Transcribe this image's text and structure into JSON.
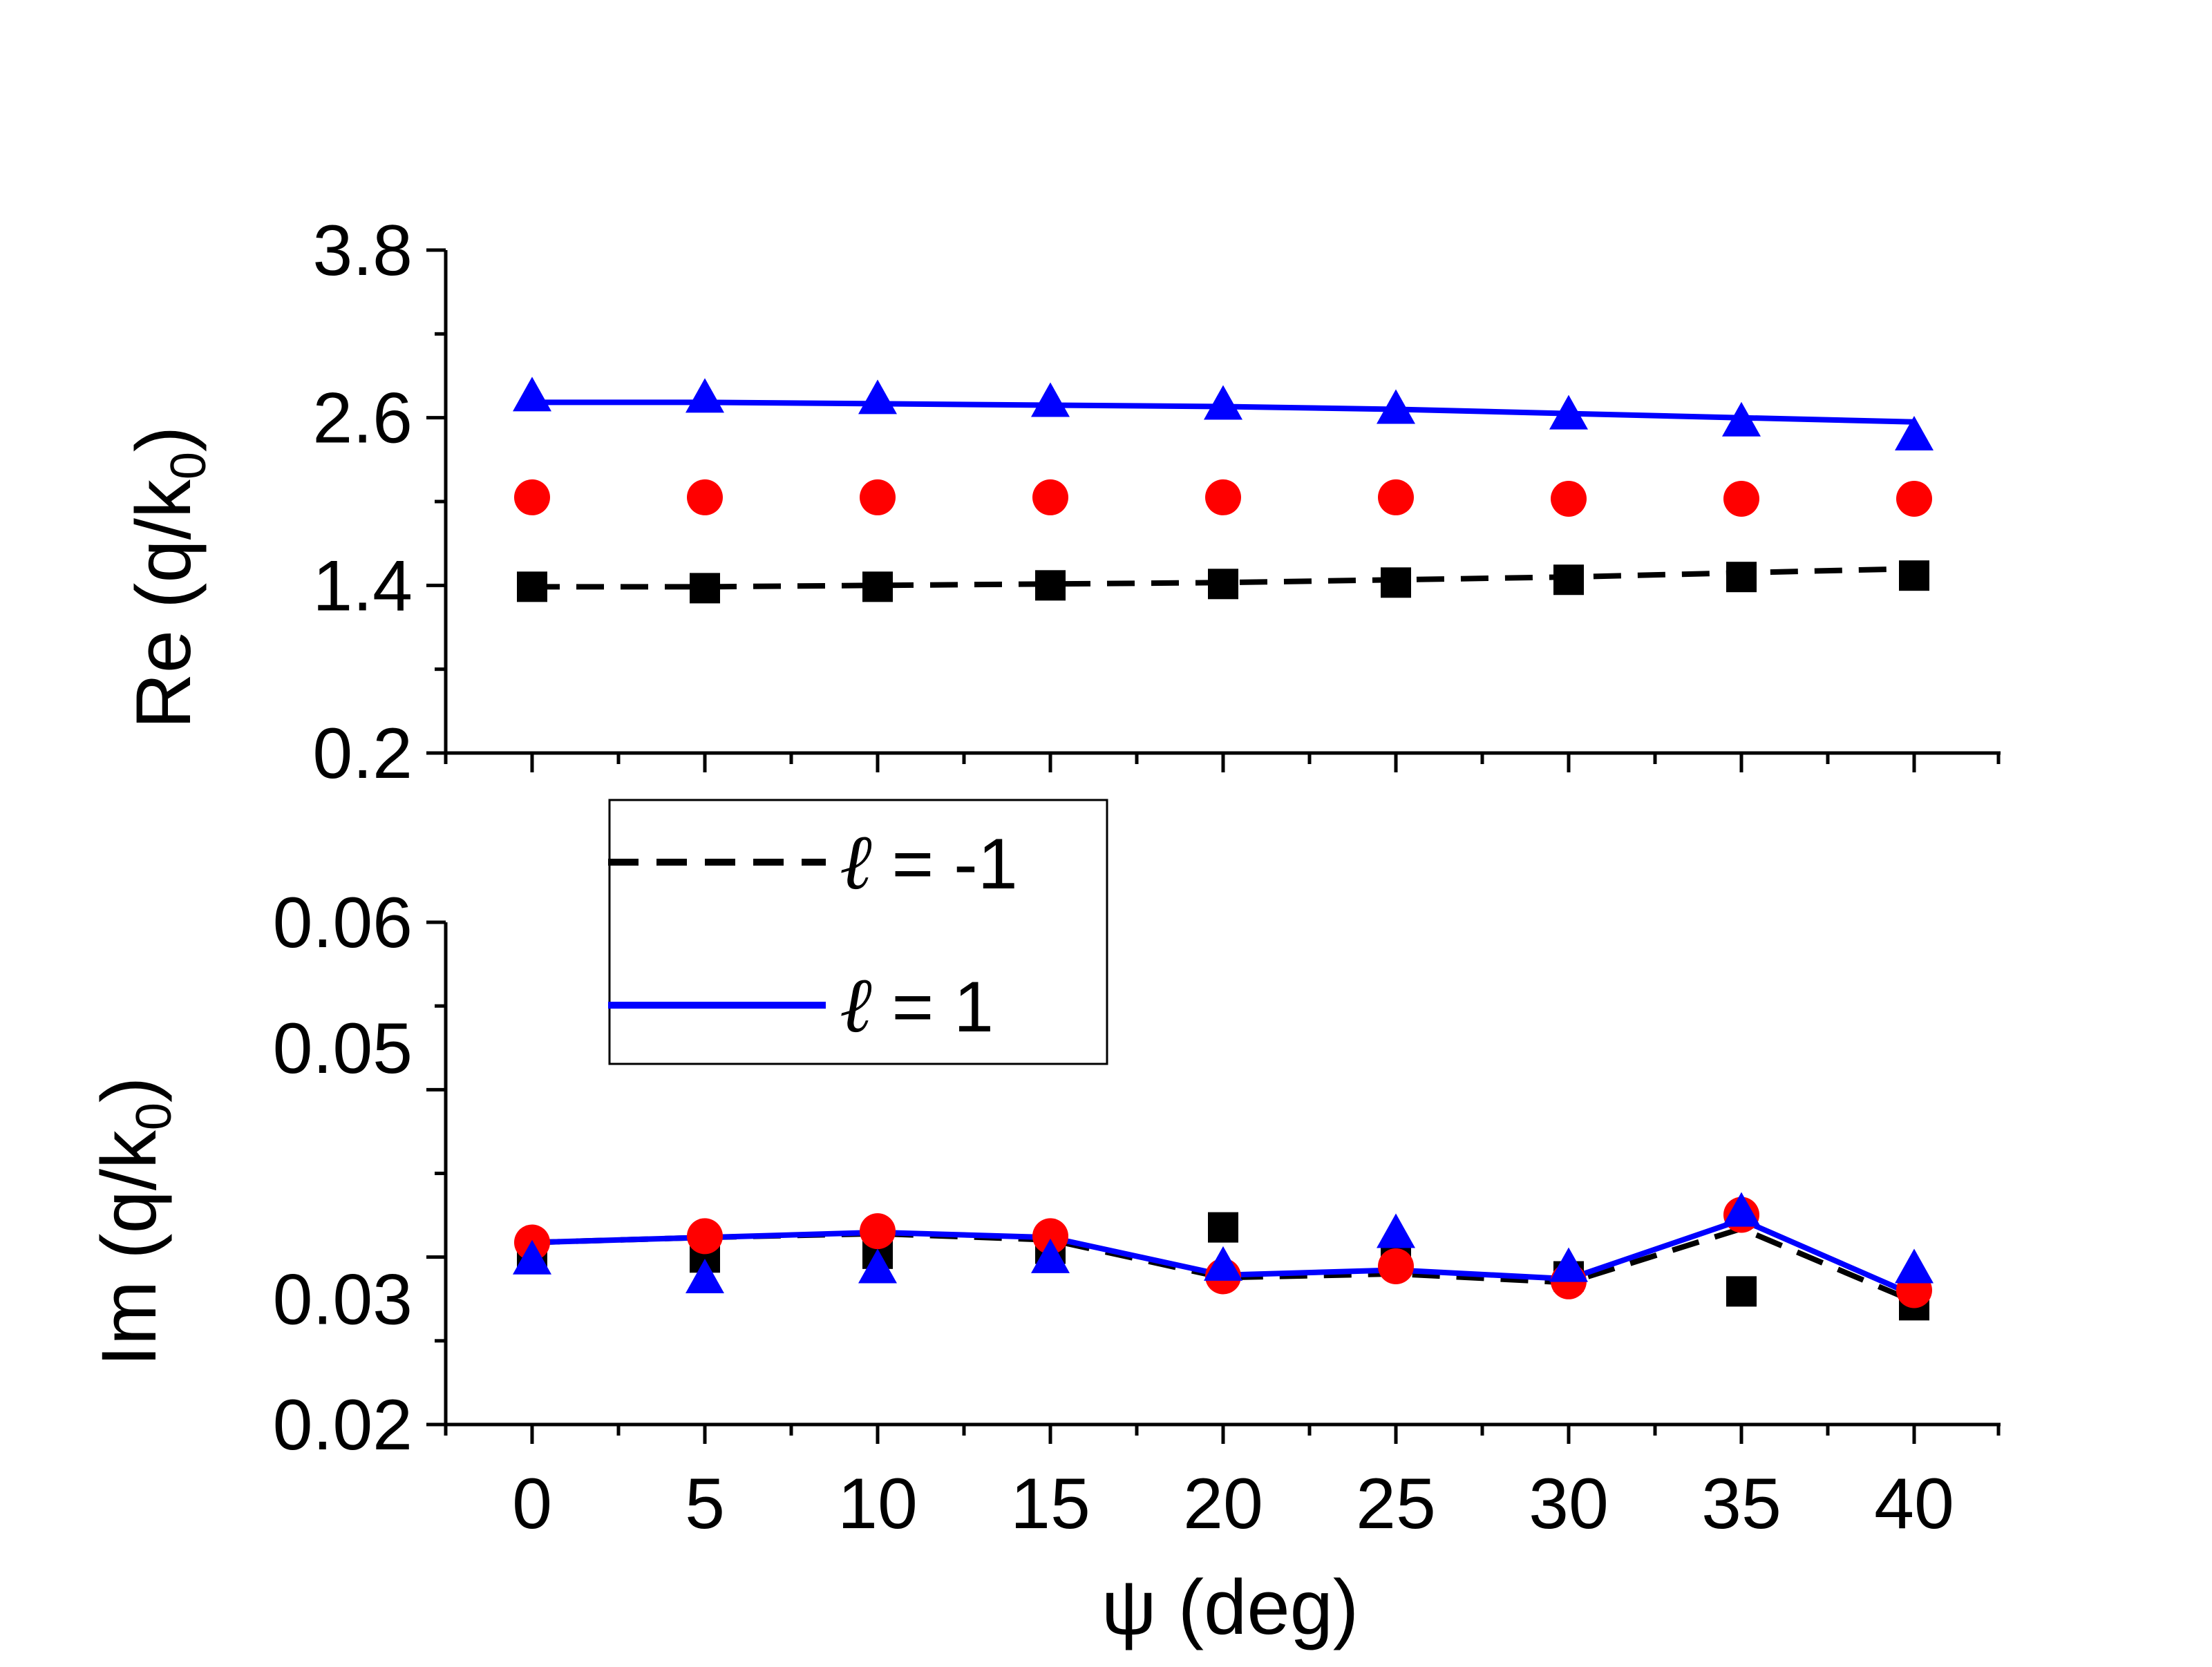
{
  "chart_data": [
    {
      "type": "line",
      "panel": "top",
      "ylabel_main": "Re (q/k",
      "ylabel_sub": "0",
      "ylabel_close": ")",
      "xlim": [
        -2.5,
        42.5
      ],
      "ylim": [
        0.2,
        3.8
      ],
      "yticks": [
        "0.2",
        "1.4",
        "2.6",
        "3.8"
      ],
      "ytick_values": [
        0.2,
        1.4,
        2.6,
        3.8
      ],
      "x": [
        0,
        5,
        10,
        15,
        20,
        25,
        30,
        35,
        40
      ],
      "lines": [
        {
          "name": "ℓ = -1",
          "style": "dashed",
          "color": "#000000",
          "values": [
            1.39,
            1.39,
            1.4,
            1.41,
            1.42,
            1.44,
            1.46,
            1.49,
            1.52
          ]
        },
        {
          "name": "ℓ = 1",
          "style": "solid",
          "color": "#0000ff",
          "values": [
            2.71,
            2.71,
            2.7,
            2.69,
            2.68,
            2.66,
            2.63,
            2.6,
            2.57
          ]
        }
      ],
      "markers": [
        {
          "shape": "square",
          "color": "#000000",
          "values": [
            1.39,
            1.38,
            1.39,
            1.4,
            1.41,
            1.42,
            1.44,
            1.46,
            1.47
          ]
        },
        {
          "shape": "circle",
          "color": "#ff0000",
          "values": [
            2.03,
            2.03,
            2.03,
            2.03,
            2.03,
            2.03,
            2.02,
            2.02,
            2.02
          ]
        },
        {
          "shape": "triangle",
          "color": "#0000ff",
          "values": [
            2.74,
            2.73,
            2.72,
            2.7,
            2.68,
            2.65,
            2.61,
            2.56,
            2.46
          ]
        }
      ]
    },
    {
      "type": "line",
      "panel": "bottom",
      "ylabel_main": "Im (q/k",
      "ylabel_sub": "0",
      "ylabel_close": ")",
      "xlabel": "ψ (deg)",
      "xlim": [
        -2.5,
        42.5
      ],
      "ylim": [
        0.02,
        0.06
      ],
      "yticks": [
        "0.02",
        "0.03",
        "0.05",
        "0.06"
      ],
      "ytick_values": [
        0.02,
        0.03,
        0.05,
        0.06
      ],
      "xticks": [
        "0",
        "5",
        "10",
        "15",
        "20",
        "25",
        "30",
        "35",
        "40"
      ],
      "x": [
        0,
        5,
        10,
        15,
        20,
        25,
        30,
        35,
        40
      ],
      "lines": [
        {
          "name": "ℓ = -1",
          "style": "dashed",
          "color": "#000000",
          "values": [
            0.0345,
            0.0349,
            0.0352,
            0.0347,
            0.0317,
            0.032,
            0.0313,
            0.0356,
            0.0298
          ]
        },
        {
          "name": "ℓ = 1",
          "style": "solid",
          "color": "#0000ff",
          "values": [
            0.0345,
            0.0349,
            0.0353,
            0.0349,
            0.0319,
            0.0323,
            0.0316,
            0.0363,
            0.0303
          ]
        }
      ],
      "markers": [
        {
          "shape": "square",
          "color": "#000000",
          "values": [
            0.0333,
            0.0333,
            0.0336,
            0.034,
            0.0357,
            0.0334,
            0.0318,
            0.0306,
            0.0295
          ]
        },
        {
          "shape": "circle",
          "color": "#ff0000",
          "values": [
            0.0345,
            0.035,
            0.0354,
            0.035,
            0.0318,
            0.0326,
            0.0314,
            0.0367,
            0.0307
          ]
        },
        {
          "shape": "triangle",
          "color": "#0000ff",
          "values": [
            0.033,
            0.0315,
            0.0323,
            0.0331,
            0.0325,
            0.0351,
            0.0324,
            0.0368,
            0.0323
          ]
        }
      ]
    }
  ],
  "legend": {
    "items": [
      {
        "symbol": "ℓ",
        "text": " = -1",
        "style": "dashed",
        "color": "#000000"
      },
      {
        "symbol": "ℓ",
        "text": " = 1",
        "style": "solid",
        "color": "#0000ff"
      }
    ]
  }
}
